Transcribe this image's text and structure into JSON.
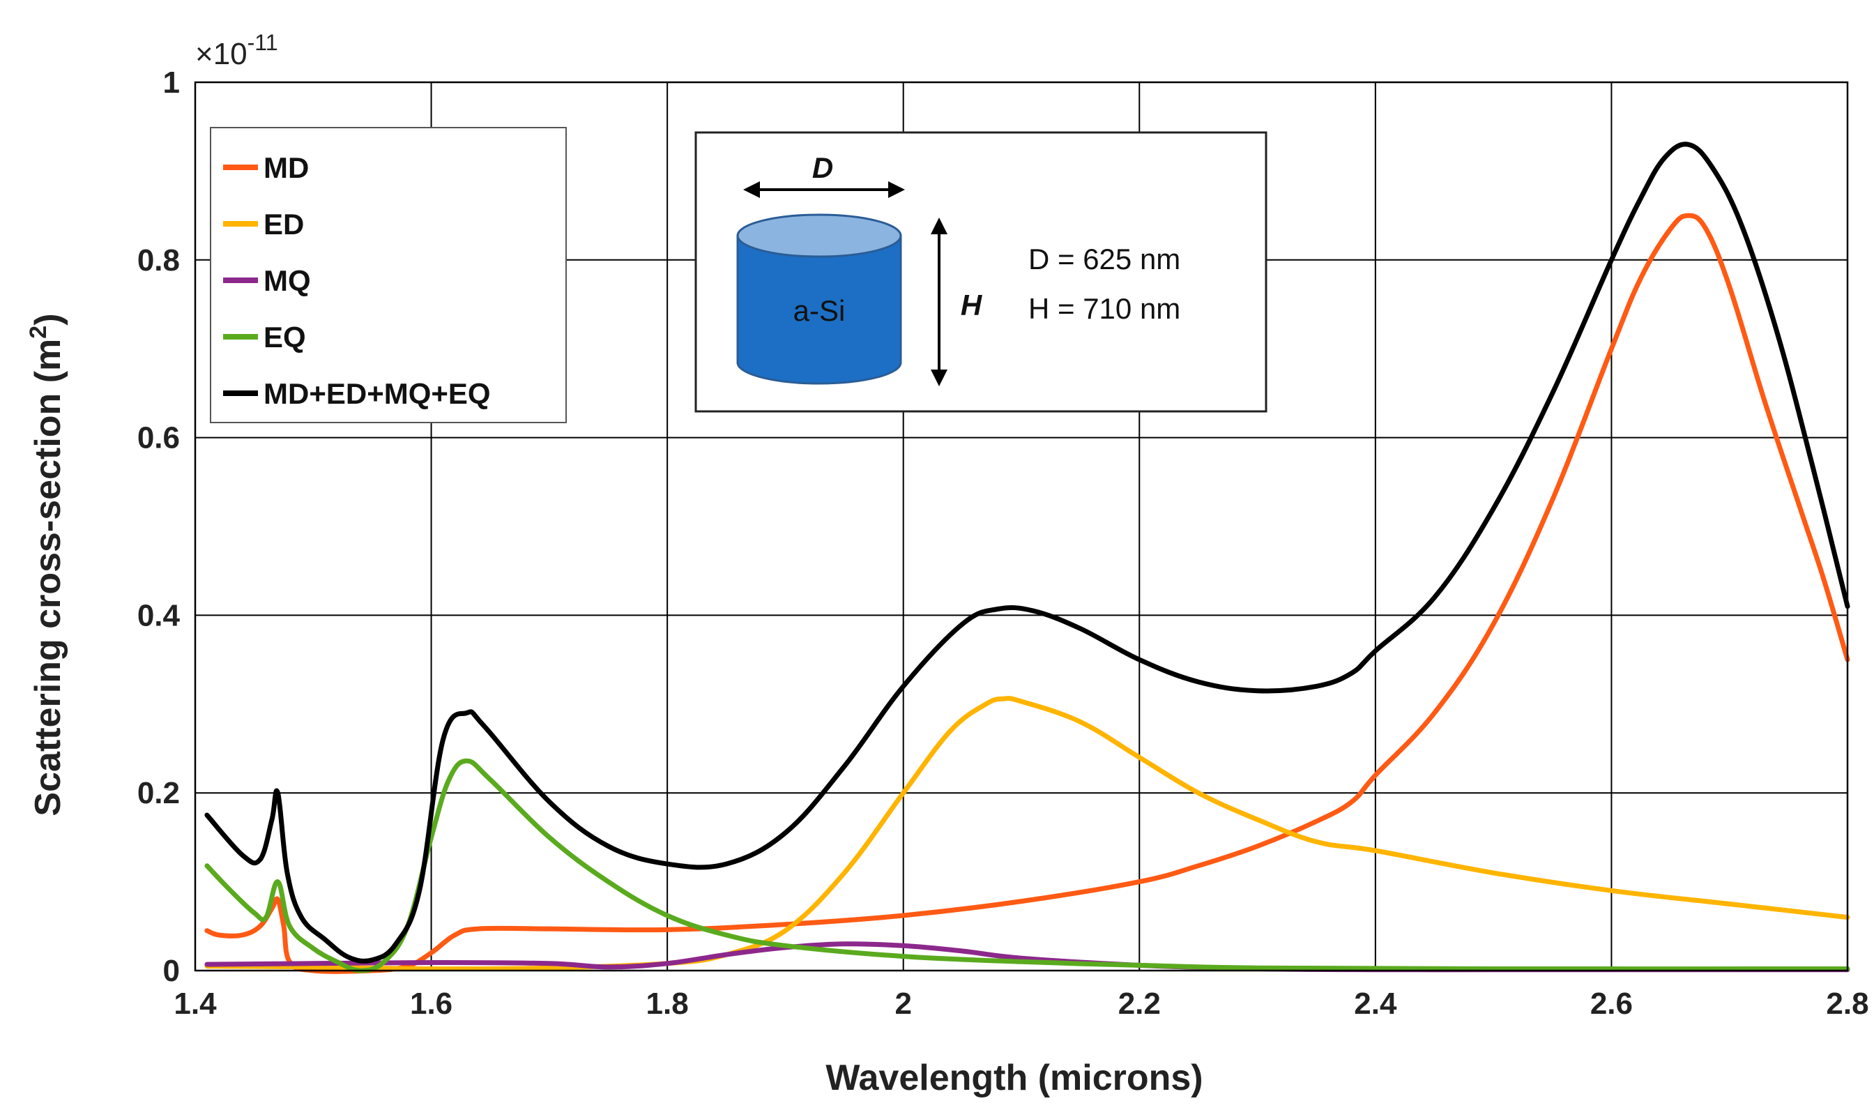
{
  "chart_data": {
    "type": "line",
    "title": "",
    "xlabel": "Wavelength (microns)",
    "ylabel": "Scattering cross-section (m²)",
    "ylabel_main": "Scattering cross-section (m",
    "ylabel_sup": "2",
    "ylabel_close": ")",
    "y_multiplier": "×10",
    "y_multiplier_exp": "-11",
    "xlim": [
      1.4,
      2.8
    ],
    "ylim": [
      0,
      1
    ],
    "xticks": [
      1.4,
      1.6,
      1.8,
      2,
      2.2,
      2.4,
      2.6,
      2.8
    ],
    "xtick_labels": [
      "1.4",
      "1.6",
      "1.8",
      "2",
      "2.2",
      "2.4",
      "2.6",
      "2.8"
    ],
    "yticks": [
      0,
      0.2,
      0.4,
      0.6,
      0.8,
      1
    ],
    "ytick_labels": [
      "0",
      "0.2",
      "0.4",
      "0.6",
      "0.8",
      "1"
    ],
    "grid": true,
    "legend_position": "top-left",
    "series": [
      {
        "name": "MD",
        "color": "#FF5A14",
        "points": [
          [
            1.41,
            0.045
          ],
          [
            1.42,
            0.04
          ],
          [
            1.44,
            0.04
          ],
          [
            1.455,
            0.05
          ],
          [
            1.465,
            0.07
          ],
          [
            1.47,
            0.08
          ],
          [
            1.475,
            0.05
          ],
          [
            1.48,
            0.01
          ],
          [
            1.5,
            0.0
          ],
          [
            1.55,
            0.0
          ],
          [
            1.58,
            0.005
          ],
          [
            1.6,
            0.02
          ],
          [
            1.62,
            0.04
          ],
          [
            1.64,
            0.047
          ],
          [
            1.7,
            0.047
          ],
          [
            1.8,
            0.046
          ],
          [
            1.9,
            0.052
          ],
          [
            2.0,
            0.062
          ],
          [
            2.1,
            0.078
          ],
          [
            2.2,
            0.1
          ],
          [
            2.25,
            0.118
          ],
          [
            2.3,
            0.14
          ],
          [
            2.35,
            0.168
          ],
          [
            2.38,
            0.19
          ],
          [
            2.4,
            0.22
          ],
          [
            2.45,
            0.29
          ],
          [
            2.5,
            0.39
          ],
          [
            2.55,
            0.53
          ],
          [
            2.6,
            0.7
          ],
          [
            2.625,
            0.78
          ],
          [
            2.65,
            0.835
          ],
          [
            2.665,
            0.85
          ],
          [
            2.68,
            0.835
          ],
          [
            2.7,
            0.77
          ],
          [
            2.73,
            0.64
          ],
          [
            2.76,
            0.52
          ],
          [
            2.78,
            0.44
          ],
          [
            2.8,
            0.35
          ]
        ]
      },
      {
        "name": "ED",
        "color": "#FFB400",
        "points": [
          [
            1.41,
            0.005
          ],
          [
            1.5,
            0.004
          ],
          [
            1.6,
            0.002
          ],
          [
            1.7,
            0.003
          ],
          [
            1.8,
            0.008
          ],
          [
            1.85,
            0.018
          ],
          [
            1.9,
            0.045
          ],
          [
            1.95,
            0.11
          ],
          [
            2.0,
            0.2
          ],
          [
            2.04,
            0.27
          ],
          [
            2.07,
            0.3
          ],
          [
            2.085,
            0.306
          ],
          [
            2.1,
            0.303
          ],
          [
            2.15,
            0.28
          ],
          [
            2.2,
            0.24
          ],
          [
            2.25,
            0.2
          ],
          [
            2.3,
            0.17
          ],
          [
            2.35,
            0.145
          ],
          [
            2.4,
            0.135
          ],
          [
            2.5,
            0.11
          ],
          [
            2.6,
            0.09
          ],
          [
            2.7,
            0.075
          ],
          [
            2.8,
            0.06
          ]
        ]
      },
      {
        "name": "MQ",
        "color": "#8C288C",
        "points": [
          [
            1.41,
            0.007
          ],
          [
            1.5,
            0.008
          ],
          [
            1.6,
            0.009
          ],
          [
            1.7,
            0.008
          ],
          [
            1.75,
            0.004
          ],
          [
            1.8,
            0.008
          ],
          [
            1.85,
            0.018
          ],
          [
            1.9,
            0.026
          ],
          [
            1.95,
            0.03
          ],
          [
            2.0,
            0.028
          ],
          [
            2.05,
            0.022
          ],
          [
            2.1,
            0.014
          ],
          [
            2.2,
            0.006
          ],
          [
            2.3,
            0.002
          ],
          [
            2.4,
            0.001
          ],
          [
            2.5,
            0.001
          ],
          [
            2.6,
            0.001
          ],
          [
            2.8,
            0.001
          ]
        ]
      },
      {
        "name": "EQ",
        "color": "#5AAA1E",
        "points": [
          [
            1.41,
            0.118
          ],
          [
            1.43,
            0.09
          ],
          [
            1.45,
            0.065
          ],
          [
            1.46,
            0.06
          ],
          [
            1.47,
            0.1
          ],
          [
            1.48,
            0.05
          ],
          [
            1.5,
            0.025
          ],
          [
            1.52,
            0.01
          ],
          [
            1.54,
            0.0
          ],
          [
            1.56,
            0.01
          ],
          [
            1.58,
            0.05
          ],
          [
            1.6,
            0.15
          ],
          [
            1.615,
            0.215
          ],
          [
            1.63,
            0.236
          ],
          [
            1.65,
            0.215
          ],
          [
            1.7,
            0.15
          ],
          [
            1.75,
            0.1
          ],
          [
            1.8,
            0.062
          ],
          [
            1.85,
            0.04
          ],
          [
            1.9,
            0.028
          ],
          [
            2.0,
            0.016
          ],
          [
            2.1,
            0.01
          ],
          [
            2.2,
            0.006
          ],
          [
            2.3,
            0.003
          ],
          [
            2.5,
            0.002
          ],
          [
            2.8,
            0.002
          ]
        ]
      },
      {
        "name": "MD+ED+MQ+EQ",
        "color": "#000000",
        "points": [
          [
            1.41,
            0.175
          ],
          [
            1.44,
            0.13
          ],
          [
            1.455,
            0.125
          ],
          [
            1.465,
            0.17
          ],
          [
            1.47,
            0.2
          ],
          [
            1.478,
            0.11
          ],
          [
            1.49,
            0.06
          ],
          [
            1.51,
            0.035
          ],
          [
            1.53,
            0.015
          ],
          [
            1.55,
            0.012
          ],
          [
            1.57,
            0.03
          ],
          [
            1.59,
            0.09
          ],
          [
            1.61,
            0.26
          ],
          [
            1.63,
            0.29
          ],
          [
            1.645,
            0.275
          ],
          [
            1.7,
            0.19
          ],
          [
            1.75,
            0.14
          ],
          [
            1.8,
            0.12
          ],
          [
            1.85,
            0.12
          ],
          [
            1.9,
            0.155
          ],
          [
            1.95,
            0.23
          ],
          [
            2.0,
            0.32
          ],
          [
            2.05,
            0.39
          ],
          [
            2.08,
            0.407
          ],
          [
            2.11,
            0.405
          ],
          [
            2.15,
            0.385
          ],
          [
            2.2,
            0.35
          ],
          [
            2.25,
            0.325
          ],
          [
            2.3,
            0.315
          ],
          [
            2.35,
            0.32
          ],
          [
            2.38,
            0.335
          ],
          [
            2.4,
            0.36
          ],
          [
            2.45,
            0.42
          ],
          [
            2.5,
            0.52
          ],
          [
            2.55,
            0.65
          ],
          [
            2.6,
            0.8
          ],
          [
            2.625,
            0.87
          ],
          [
            2.645,
            0.915
          ],
          [
            2.665,
            0.93
          ],
          [
            2.685,
            0.905
          ],
          [
            2.71,
            0.84
          ],
          [
            2.74,
            0.72
          ],
          [
            2.77,
            0.57
          ],
          [
            2.8,
            0.41
          ]
        ]
      }
    ]
  },
  "inset": {
    "d_label": "D",
    "h_label": "H",
    "material": "a-Si",
    "d_value": "D = 625 nm",
    "h_value": "H = 710 nm"
  }
}
